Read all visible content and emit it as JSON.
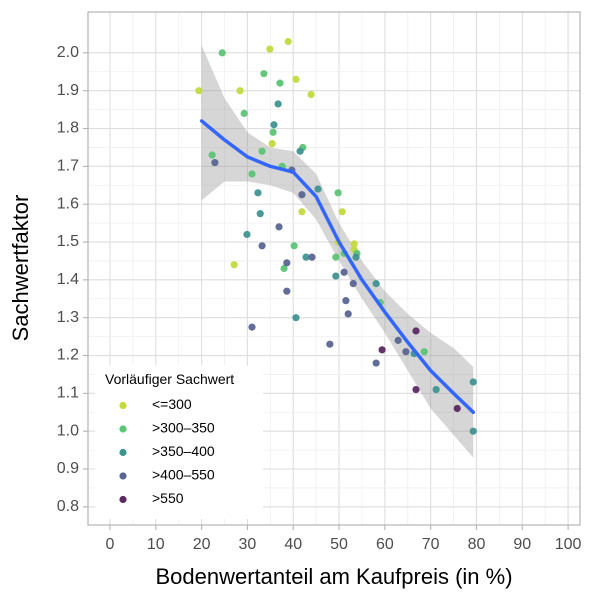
{
  "chart_data": {
    "type": "scatter",
    "xlabel": "Bodenwertanteil am Kaufpreis (in %)",
    "ylabel": "Sachwertfaktor",
    "legend_title": "Vorläufiger Sachwert",
    "legend_position": "bottom-left",
    "grid": true,
    "xlim": [
      -4.8,
      102.6
    ],
    "ylim": [
      0.752,
      2.108
    ],
    "xticks": [
      0,
      10,
      20,
      30,
      40,
      50,
      60,
      70,
      80,
      90,
      100
    ],
    "yticks": [
      0.8,
      0.9,
      {
        "value": 1,
        "label": "1.0"
      },
      1.1,
      1.2,
      1.3,
      1.4,
      1.5,
      1.6,
      1.7,
      1.8,
      1.9,
      {
        "value": 2,
        "label": "2.0"
      }
    ],
    "series": [
      {
        "name": "<=300",
        "color": "#c3d93f",
        "x": [
          19.4,
          28.4,
          34.9,
          38.9,
          40.6,
          43.9,
          35.4,
          41.9,
          27.1,
          50.7,
          49.8,
          53.3,
          53.3
        ],
        "y": [
          1.9,
          1.9,
          2.01,
          2.03,
          1.93,
          1.89,
          1.76,
          1.58,
          1.44,
          1.58,
          1.5,
          1.495,
          1.48
        ]
      },
      {
        "name": ">300–350",
        "color": "#5cc474",
        "x": [
          24.5,
          33.6,
          29.3,
          37.1,
          35.6,
          22.3,
          42.1,
          37.6,
          33.2,
          31.0,
          40.2,
          38.0,
          49.8,
          51.1,
          49.3,
          59.0,
          68.6,
          53.9
        ],
        "y": [
          2.0,
          1.945,
          1.84,
          1.92,
          1.79,
          1.73,
          1.75,
          1.7,
          1.74,
          1.68,
          1.49,
          1.43,
          1.63,
          1.47,
          1.46,
          1.34,
          1.21,
          1.47
        ]
      },
      {
        "name": ">350–400",
        "color": "#3f9490",
        "x": [
          36.7,
          35.8,
          41.5,
          32.3,
          32.8,
          29.9,
          45.4,
          40.6,
          42.8,
          49.3,
          58.1,
          53.7,
          66.4,
          71.2,
          79.3,
          79.3
        ],
        "y": [
          1.865,
          1.81,
          1.74,
          1.63,
          1.575,
          1.52,
          1.64,
          1.3,
          1.46,
          1.41,
          1.39,
          1.46,
          1.205,
          1.11,
          1.13,
          1.0
        ]
      },
      {
        "name": ">400–550",
        "color": "#5a6595",
        "x": [
          22.9,
          36.9,
          33.2,
          31.0,
          38.6,
          38.6,
          39.7,
          41.9,
          44.1,
          48.0,
          51.1,
          51.5,
          52.0,
          53.1,
          58.1,
          62.9,
          64.6
        ],
        "y": [
          1.71,
          1.54,
          1.49,
          1.275,
          1.445,
          1.37,
          1.69,
          1.625,
          1.46,
          1.23,
          1.42,
          1.345,
          1.31,
          1.39,
          1.18,
          1.24,
          1.21
        ]
      },
      {
        "name": ">550",
        "color": "#5b2a62",
        "x": [
          59.4,
          66.8,
          66.8,
          75.8
        ],
        "y": [
          1.215,
          1.265,
          1.11,
          1.06
        ]
      }
    ],
    "smooth": {
      "color": "#3366ff",
      "x": [
        20,
        25,
        30,
        35,
        40,
        45,
        50,
        55,
        60,
        65,
        70,
        75,
        79.3
      ],
      "y": [
        1.82,
        1.77,
        1.725,
        1.7,
        1.685,
        1.62,
        1.5,
        1.4,
        1.315,
        1.235,
        1.16,
        1.1,
        1.05
      ],
      "lower": [
        1.61,
        1.66,
        1.66,
        1.65,
        1.63,
        1.56,
        1.45,
        1.35,
        1.26,
        1.16,
        1.06,
        0.99,
        0.93
      ],
      "upper": [
        2.02,
        1.88,
        1.79,
        1.75,
        1.74,
        1.68,
        1.55,
        1.45,
        1.37,
        1.31,
        1.26,
        1.22,
        1.17
      ]
    }
  }
}
